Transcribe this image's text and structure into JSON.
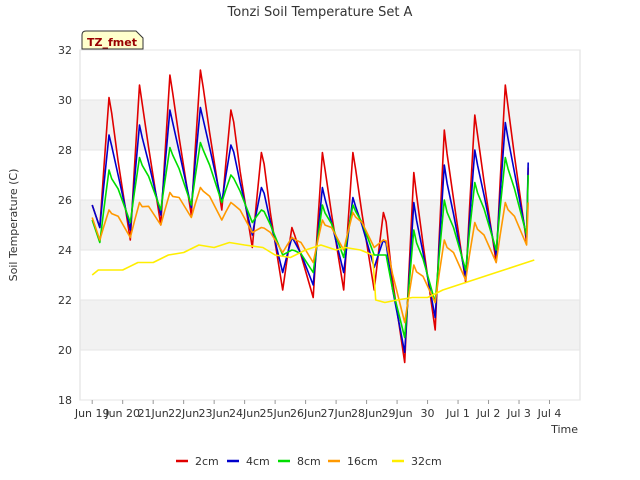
{
  "chart_data": {
    "type": "line",
    "title": "Tonzi Soil Temperature Set A",
    "xlabel": "Time",
    "ylabel": "Soil Temperature (C)",
    "xlim": [
      18.6,
      35.0
    ],
    "ylim": [
      18,
      32
    ],
    "yticks": [
      18,
      20,
      22,
      24,
      26,
      28,
      30,
      32
    ],
    "xticks": [
      {
        "v": 19,
        "label": "Jun 19"
      },
      {
        "v": 20,
        "label": "Jun 20"
      },
      {
        "v": 21,
        "label": "21Jun"
      },
      {
        "v": 22,
        "label": "22Jun"
      },
      {
        "v": 23,
        "label": "23Jun"
      },
      {
        "v": 24,
        "label": "24Jun"
      },
      {
        "v": 25,
        "label": "25Jun"
      },
      {
        "v": 26,
        "label": "26Jun"
      },
      {
        "v": 27,
        "label": "27Jun"
      },
      {
        "v": 28,
        "label": "28Jun"
      },
      {
        "v": 29,
        "label": "29Jun"
      },
      {
        "v": 30,
        "label": "30"
      },
      {
        "v": 31,
        "label": "Jul 1"
      },
      {
        "v": 32,
        "label": "Jul 2"
      },
      {
        "v": 33,
        "label": "Jul 3"
      },
      {
        "v": 34,
        "label": "Jul 4"
      }
    ],
    "grid": true,
    "legend_position": "bottom",
    "badge": "TZ_fmet",
    "series": [
      {
        "name": "2cm",
        "color": "#e00000",
        "mins": [
          24.9,
          24.4,
          25.0,
          25.4,
          25.6,
          24.1,
          22.4,
          22.1,
          22.4,
          22.4,
          19.5,
          20.8,
          22.7,
          23.5,
          24.3
        ],
        "maxs": [
          30.1,
          30.6,
          31.0,
          31.2,
          29.6,
          27.9,
          24.9,
          27.9,
          27.9,
          25.5,
          27.1,
          28.8,
          29.4,
          30.6
        ],
        "last": 27.3
      },
      {
        "name": "4cm",
        "color": "#0000cc",
        "mins": [
          24.9,
          24.8,
          25.4,
          25.7,
          25.9,
          24.6,
          23.1,
          22.6,
          23.1,
          23.3,
          19.9,
          21.3,
          22.9,
          23.8,
          24.5
        ],
        "maxs": [
          28.6,
          29.0,
          29.6,
          29.7,
          28.2,
          26.5,
          24.5,
          26.5,
          26.1,
          24.4,
          25.9,
          27.4,
          28.0,
          29.1
        ],
        "last": 27.5
      },
      {
        "name": "8cm",
        "color": "#00dd00",
        "mins": [
          24.3,
          25.1,
          25.6,
          25.8,
          25.9,
          25.1,
          23.8,
          23.1,
          23.7,
          23.8,
          20.5,
          21.9,
          23.2,
          24.0,
          24.6
        ],
        "maxs": [
          27.2,
          27.7,
          28.1,
          28.3,
          27.0,
          25.6,
          24.0,
          25.8,
          25.8,
          23.8,
          24.8,
          26.0,
          26.7,
          27.7
        ],
        "last": 27.0
      },
      {
        "name": "16cm",
        "color": "#ff9900",
        "mins": [
          24.4,
          24.5,
          25.0,
          25.3,
          25.2,
          24.7,
          23.9,
          23.5,
          24.0,
          24.1,
          21.1,
          21.9,
          22.8,
          23.5,
          24.2
        ],
        "maxs": [
          25.6,
          25.9,
          26.3,
          26.5,
          25.9,
          24.9,
          24.5,
          25.2,
          25.5,
          24.4,
          23.4,
          24.4,
          25.1,
          25.9
        ],
        "last": 25.9
      },
      {
        "name": "32cm",
        "color": "#ffee00",
        "points": [
          [
            19.0,
            23.0
          ],
          [
            19.2,
            23.2
          ],
          [
            19.6,
            23.2
          ],
          [
            20.0,
            23.2
          ],
          [
            20.5,
            23.5
          ],
          [
            21.0,
            23.5
          ],
          [
            21.5,
            23.8
          ],
          [
            22.0,
            23.9
          ],
          [
            22.5,
            24.2
          ],
          [
            23.0,
            24.1
          ],
          [
            23.5,
            24.3
          ],
          [
            24.0,
            24.2
          ],
          [
            24.6,
            24.1
          ],
          [
            25.0,
            23.8
          ],
          [
            25.5,
            23.7
          ],
          [
            26.0,
            24.0
          ],
          [
            26.5,
            24.2
          ],
          [
            27.0,
            24.0
          ],
          [
            27.3,
            24.1
          ],
          [
            27.8,
            24.0
          ],
          [
            28.2,
            23.8
          ],
          [
            28.3,
            22.0
          ],
          [
            28.6,
            21.9
          ],
          [
            29.0,
            22.0
          ],
          [
            29.5,
            22.1
          ],
          [
            30.0,
            22.1
          ],
          [
            30.5,
            22.4
          ],
          [
            31.0,
            22.6
          ],
          [
            31.5,
            22.8
          ],
          [
            32.0,
            23.0
          ],
          [
            32.5,
            23.2
          ],
          [
            33.0,
            23.4
          ],
          [
            33.5,
            23.6
          ]
        ]
      }
    ]
  }
}
